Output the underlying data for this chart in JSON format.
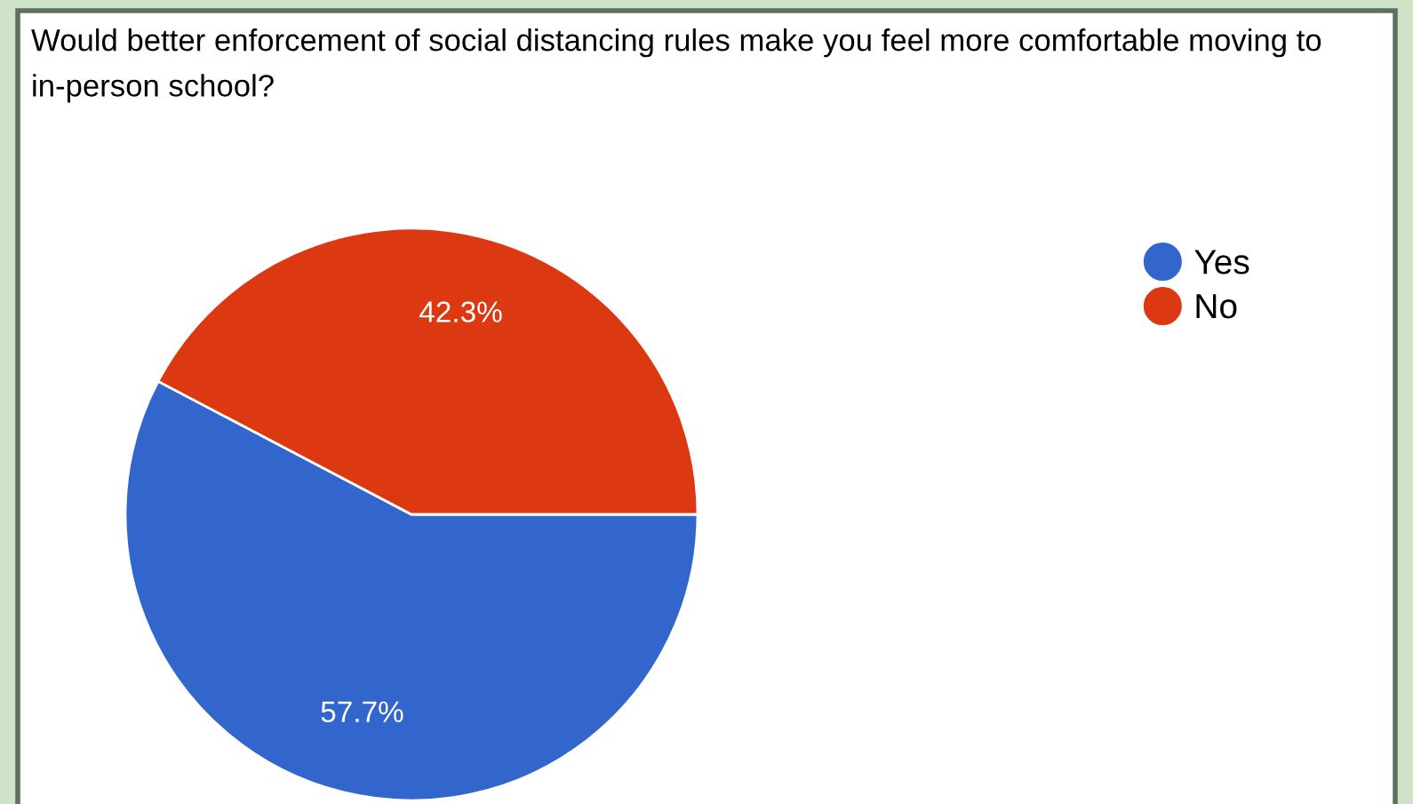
{
  "chart_data": {
    "type": "pie",
    "title": "Would better enforcement of social distancing rules make you feel more comfortable moving to in-person school?",
    "categories": [
      "Yes",
      "No"
    ],
    "values": [
      57.7,
      42.3
    ],
    "colors": [
      "#3366cc",
      "#dc3912"
    ],
    "value_labels": [
      "57.7%",
      "42.3%"
    ],
    "legend": "top right"
  }
}
